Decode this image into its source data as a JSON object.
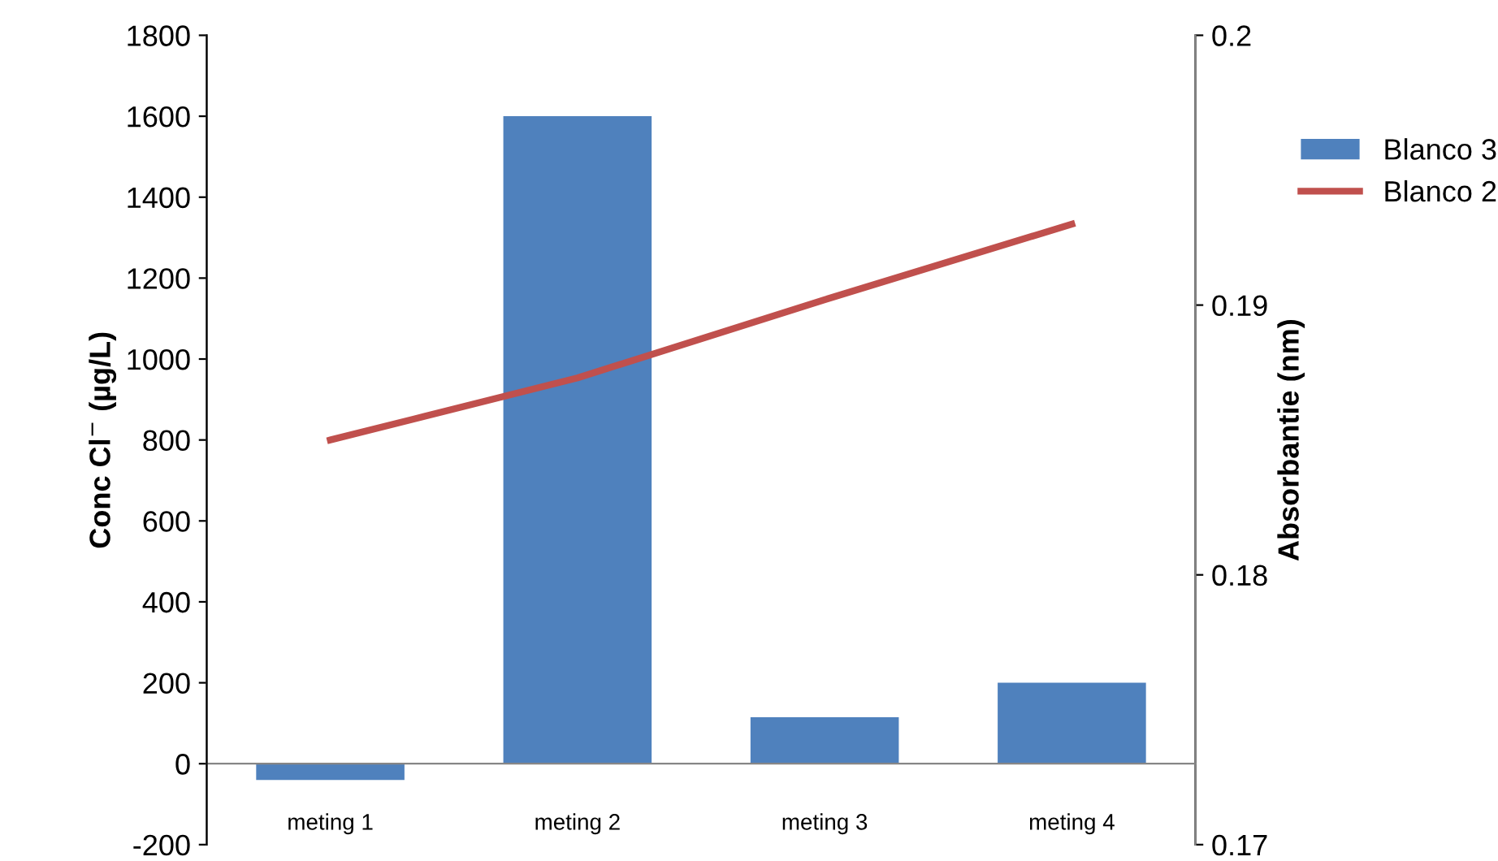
{
  "chart_data": {
    "type": "bar",
    "categories": [
      "meting 1",
      "meting 2",
      "meting 3",
      "meting 4"
    ],
    "ylabel": "Conc Cl$^{−}$ (µg/L)",
    "y2label": "Absorbantie (nm)",
    "ylim": [
      -200,
      1800
    ],
    "yticks": [
      -200,
      0,
      200,
      400,
      600,
      800,
      1000,
      1200,
      1400,
      1600,
      1800
    ],
    "y2lim": [
      0.17,
      0.2
    ],
    "y2ticks": [
      0.17,
      0.18,
      0.19,
      0.2
    ],
    "series": [
      {
        "name": "Blanco 3",
        "color": "#4f81bd",
        "values": [
          -40,
          1600,
          115,
          200
        ]
      },
      {
        "name": "Blanco 2",
        "type": "line",
        "axis": "y2",
        "color": "#c0504d",
        "values": [
          0.185,
          0.1873,
          0.1902,
          0.193
        ]
      }
    ],
    "grid": false,
    "legend": "right"
  }
}
